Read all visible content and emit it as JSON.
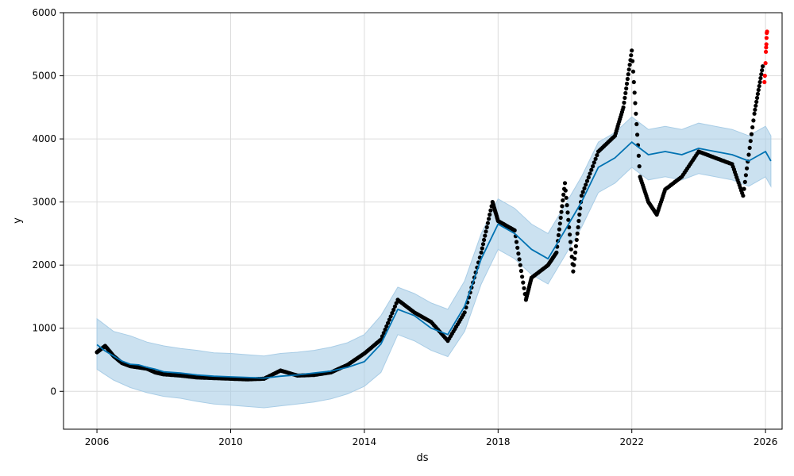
{
  "chart_data": {
    "type": "line",
    "xlabel": "ds",
    "ylabel": "y",
    "xlim": [
      "2005-01-01",
      "2026-07-01"
    ],
    "ylim": [
      -600,
      6000
    ],
    "x_ticks": [
      "2006",
      "2010",
      "2014",
      "2018",
      "2022",
      "2026"
    ],
    "y_ticks": [
      0,
      1000,
      2000,
      3000,
      4000,
      5000,
      6000
    ],
    "grid": true,
    "colors": {
      "forecast": "#0072b2",
      "interval": "#a9cde6",
      "observed": "#000000",
      "outlier": "#ff0000"
    },
    "series": [
      {
        "role": "forecast",
        "x": [
          "2006-01-01",
          "2006-04-01",
          "2006-07-01",
          "2006-10-01",
          "2007-01-01",
          "2007-04-01",
          "2007-07-01",
          "2007-10-01",
          "2008-01-01",
          "2008-07-01",
          "2009-01-01",
          "2009-07-01",
          "2010-01-01",
          "2010-07-01",
          "2011-01-01",
          "2011-07-01",
          "2012-01-01",
          "2012-07-01",
          "2013-01-01",
          "2013-07-01",
          "2014-01-01",
          "2014-07-01",
          "2015-01-01",
          "2015-07-01",
          "2016-01-01",
          "2016-07-01",
          "2017-01-01",
          "2017-07-01",
          "2018-01-01",
          "2018-07-01",
          "2019-01-01",
          "2019-07-01",
          "2020-01-01",
          "2020-07-01",
          "2021-01-01",
          "2021-07-01",
          "2022-01-01",
          "2022-07-01",
          "2023-01-01",
          "2023-07-01",
          "2024-01-01",
          "2024-07-01",
          "2025-01-01",
          "2025-07-01",
          "2026-01-01",
          "2026-03-01"
        ],
        "y": [
          740,
          640,
          560,
          480,
          430,
          420,
          380,
          350,
          310,
          290,
          260,
          240,
          230,
          220,
          210,
          240,
          260,
          290,
          320,
          380,
          470,
          750,
          1300,
          1200,
          1000,
          900,
          1350,
          2100,
          2650,
          2500,
          2250,
          2100,
          2550,
          3000,
          3550,
          3700,
          3950,
          3750,
          3800,
          3750,
          3850,
          3800,
          3750,
          3650,
          3800,
          3650
        ]
      },
      {
        "role": "interval_upper",
        "x": [
          "2006-01-01",
          "2006-07-01",
          "2007-01-01",
          "2007-07-01",
          "2008-01-01",
          "2008-07-01",
          "2009-01-01",
          "2009-07-01",
          "2010-01-01",
          "2010-07-01",
          "2011-01-01",
          "2011-07-01",
          "2012-01-01",
          "2012-07-01",
          "2013-01-01",
          "2013-07-01",
          "2014-01-01",
          "2014-07-01",
          "2015-01-01",
          "2015-07-01",
          "2016-01-01",
          "2016-07-01",
          "2017-01-01",
          "2017-07-01",
          "2018-01-01",
          "2018-07-01",
          "2019-01-01",
          "2019-07-01",
          "2020-01-01",
          "2020-07-01",
          "2021-01-01",
          "2021-07-01",
          "2022-01-01",
          "2022-07-01",
          "2023-01-01",
          "2023-07-01",
          "2024-01-01",
          "2024-07-01",
          "2025-01-01",
          "2025-07-01",
          "2026-01-01",
          "2026-03-01"
        ],
        "y": [
          1150,
          950,
          880,
          780,
          720,
          680,
          650,
          610,
          600,
          580,
          560,
          600,
          620,
          650,
          700,
          770,
          900,
          1200,
          1650,
          1550,
          1400,
          1300,
          1750,
          2500,
          3050,
          2900,
          2650,
          2500,
          2950,
          3400,
          3950,
          4100,
          4350,
          4150,
          4200,
          4150,
          4250,
          4200,
          4150,
          4050,
          4200,
          4050
        ]
      },
      {
        "role": "interval_lower",
        "x": [
          "2006-01-01",
          "2006-07-01",
          "2007-01-01",
          "2007-07-01",
          "2008-01-01",
          "2008-07-01",
          "2009-01-01",
          "2009-07-01",
          "2010-01-01",
          "2010-07-01",
          "2011-01-01",
          "2011-07-01",
          "2012-01-01",
          "2012-07-01",
          "2013-01-01",
          "2013-07-01",
          "2014-01-01",
          "2014-07-01",
          "2015-01-01",
          "2015-07-01",
          "2016-01-01",
          "2016-07-01",
          "2017-01-01",
          "2017-07-01",
          "2018-01-01",
          "2018-07-01",
          "2019-01-01",
          "2019-07-01",
          "2020-01-01",
          "2020-07-01",
          "2021-01-01",
          "2021-07-01",
          "2022-01-01",
          "2022-07-01",
          "2023-01-01",
          "2023-07-01",
          "2024-01-01",
          "2024-07-01",
          "2025-01-01",
          "2025-07-01",
          "2026-01-01",
          "2026-03-01"
        ],
        "y": [
          350,
          180,
          60,
          -20,
          -80,
          -110,
          -160,
          -200,
          -220,
          -240,
          -260,
          -230,
          -200,
          -170,
          -120,
          -40,
          80,
          300,
          900,
          800,
          650,
          550,
          950,
          1700,
          2250,
          2100,
          1850,
          1700,
          2150,
          2600,
          3150,
          3300,
          3550,
          3350,
          3400,
          3350,
          3450,
          3400,
          3350,
          3250,
          3400,
          3250
        ]
      },
      {
        "role": "observed",
        "x": [
          "2006-01-01",
          "2006-04-01",
          "2006-07-01",
          "2006-10-01",
          "2007-01-01",
          "2007-04-01",
          "2007-07-01",
          "2007-10-01",
          "2008-01-01",
          "2008-07-01",
          "2009-01-01",
          "2009-07-01",
          "2010-01-01",
          "2010-07-01",
          "2011-01-01",
          "2011-07-01",
          "2012-01-01",
          "2012-07-01",
          "2013-01-01",
          "2013-07-01",
          "2014-01-01",
          "2014-07-01",
          "2015-01-01",
          "2015-07-01",
          "2016-01-01",
          "2016-07-01",
          "2017-01-01",
          "2017-07-01",
          "2017-11-01",
          "2018-01-01",
          "2018-07-01",
          "2018-11-01",
          "2019-01-01",
          "2019-07-01",
          "2019-10-01",
          "2020-01-01",
          "2020-04-01",
          "2020-07-01",
          "2021-01-01",
          "2021-07-01",
          "2021-10-01",
          "2022-01-01",
          "2022-04-01",
          "2022-07-01",
          "2022-10-01",
          "2023-01-01",
          "2023-07-01",
          "2024-01-01",
          "2024-07-01",
          "2025-01-01",
          "2025-05-01",
          "2025-09-01",
          "2025-12-01"
        ],
        "y": [
          620,
          720,
          560,
          450,
          400,
          380,
          360,
          300,
          270,
          250,
          220,
          210,
          200,
          190,
          200,
          330,
          250,
          260,
          300,
          420,
          600,
          820,
          1450,
          1250,
          1100,
          800,
          1250,
          2200,
          3000,
          2700,
          2550,
          1450,
          1800,
          2000,
          2200,
          3300,
          1900,
          3100,
          3800,
          4050,
          4500,
          5400,
          3400,
          3000,
          2800,
          3200,
          3400,
          3800,
          3700,
          3600,
          3100,
          4400,
          5150
        ]
      },
      {
        "role": "outliers",
        "x": [
          "2025-12-20",
          "2025-12-25",
          "2026-01-01",
          "2026-01-05",
          "2026-01-08",
          "2026-01-10",
          "2026-01-12",
          "2026-01-15",
          "2026-01-18"
        ],
        "y": [
          4900,
          5000,
          5200,
          5380,
          5450,
          5500,
          5600,
          5680,
          5700
        ]
      }
    ]
  }
}
